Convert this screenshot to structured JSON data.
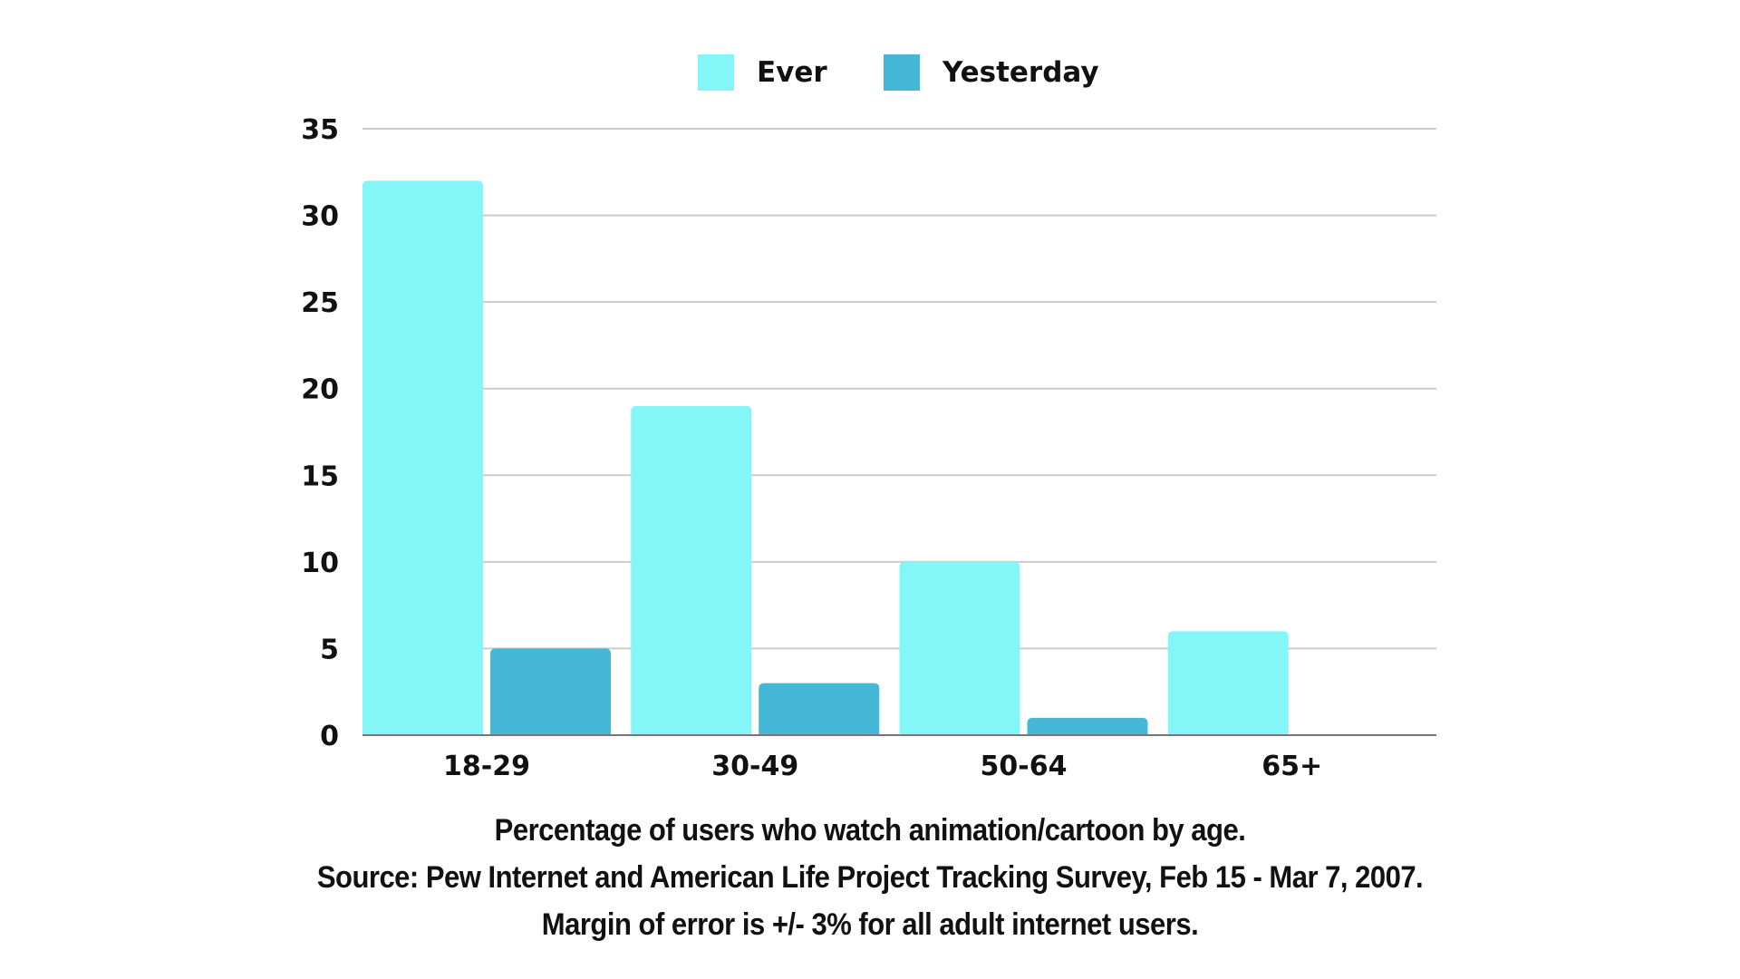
{
  "chart_data": {
    "type": "bar",
    "categories": [
      "18-29",
      "30-49",
      "50-64",
      "65+"
    ],
    "series": [
      {
        "name": "Ever",
        "color": "#84F6F7",
        "values": [
          32,
          19,
          10,
          6
        ]
      },
      {
        "name": "Yesterday",
        "color": "#44B8D6",
        "values": [
          5,
          3,
          1,
          0
        ]
      }
    ],
    "ylim": [
      0,
      35
    ],
    "yticks": [
      0,
      5,
      10,
      15,
      20,
      25,
      30,
      35
    ],
    "grid": true,
    "legend": "top-center",
    "xlabel": "",
    "ylabel": "",
    "title": ""
  },
  "caption": {
    "line1": "Percentage of users who watch animation/cartoon by age.",
    "line2": "Source: Pew Internet and American Life Project Tracking Survey, Feb 15 - Mar 7, 2007.",
    "line3": "Margin of error is +/- 3% for all adult internet users."
  }
}
